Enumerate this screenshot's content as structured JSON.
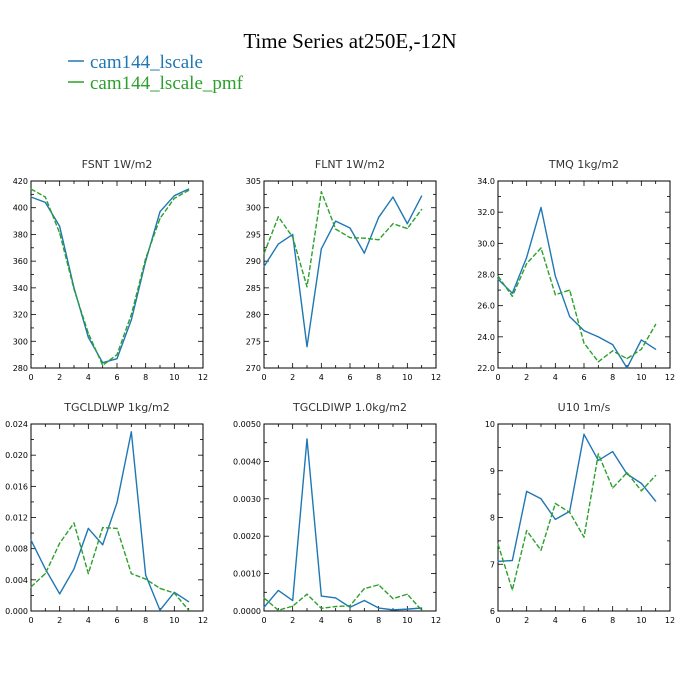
{
  "figure": {
    "title": "Time Series at250E,-12N",
    "legend": [
      {
        "name": "cam144_lscale",
        "color": "#1f77b4"
      },
      {
        "name": "cam144_lscale_pmf",
        "color": "#2ca02c",
        "dash": true
      }
    ]
  },
  "chart_data": [
    {
      "type": "line",
      "title": "FSNT   1W/m2",
      "xlim": [
        0,
        12
      ],
      "ylim": [
        280,
        420
      ],
      "xticks": [
        0,
        2,
        4,
        6,
        8,
        10,
        12
      ],
      "xtick_labels": [
        "0",
        "2",
        "4",
        "6",
        "8",
        "10",
        "12"
      ],
      "yticks": [
        280,
        300,
        320,
        340,
        360,
        380,
        400,
        420
      ],
      "ytick_labels": [
        "280",
        "300",
        "320",
        "340",
        "360",
        "380",
        "400",
        "420"
      ],
      "x": [
        0,
        1,
        2,
        3,
        4,
        5,
        6,
        7,
        8,
        9,
        10,
        11
      ],
      "series": [
        {
          "name": "cam144_lscale",
          "values": [
            408,
            404,
            386,
            340,
            303,
            284,
            287,
            316,
            360,
            397,
            409,
            414
          ]
        },
        {
          "name": "cam144_lscale_pmf",
          "values": [
            414,
            408,
            381,
            339,
            306,
            282,
            290,
            320,
            362,
            392,
            407,
            413
          ]
        }
      ]
    },
    {
      "type": "line",
      "title": "FLNT   1W/m2",
      "xlim": [
        0,
        12
      ],
      "ylim": [
        270,
        305
      ],
      "xticks": [
        0,
        2,
        4,
        6,
        8,
        10,
        12
      ],
      "xtick_labels": [
        "0",
        "2",
        "4",
        "6",
        "8",
        "10",
        "12"
      ],
      "yticks": [
        270,
        275,
        280,
        285,
        290,
        295,
        300,
        305
      ],
      "ytick_labels": [
        "270",
        "275",
        "280",
        "285",
        "290",
        "295",
        "300",
        "305"
      ],
      "x": [
        0,
        1,
        2,
        3,
        4,
        5,
        6,
        7,
        8,
        9,
        10,
        11
      ],
      "series": [
        {
          "name": "cam144_lscale",
          "values": [
            289,
            293.2,
            295,
            274,
            292.3,
            297.5,
            296.2,
            291.5,
            298.2,
            302,
            297,
            302.2
          ]
        },
        {
          "name": "cam144_lscale_pmf",
          "values": [
            291.4,
            298.3,
            294.5,
            285.2,
            303,
            296,
            294.4,
            294.3,
            294,
            297,
            296.1,
            299.7
          ]
        }
      ]
    },
    {
      "type": "line",
      "title": "TMQ   1kg/m2",
      "xlim": [
        0,
        12
      ],
      "ylim": [
        22,
        34
      ],
      "xticks": [
        0,
        2,
        4,
        6,
        8,
        10,
        12
      ],
      "xtick_labels": [
        "0",
        "2",
        "4",
        "6",
        "8",
        "10",
        "12"
      ],
      "yticks": [
        22,
        24,
        26,
        28,
        30,
        32,
        34
      ],
      "ytick_labels": [
        "22.0",
        "24.0",
        "26.0",
        "28.0",
        "30.0",
        "32.0",
        "34.0"
      ],
      "x": [
        0,
        1,
        2,
        3,
        4,
        5,
        6,
        7,
        8,
        9,
        10,
        11
      ],
      "series": [
        {
          "name": "cam144_lscale",
          "values": [
            27.7,
            26.8,
            29.1,
            32.3,
            27.9,
            25.3,
            24.4,
            24,
            23.5,
            22,
            23.8,
            23.2
          ]
        },
        {
          "name": "cam144_lscale_pmf",
          "values": [
            27.9,
            26.6,
            28.7,
            29.7,
            26.7,
            27,
            23.6,
            22.4,
            23.1,
            22.6,
            23.2,
            24.8
          ]
        }
      ]
    },
    {
      "type": "line",
      "title": "TGCLDLWP   1kg/m2",
      "xlim": [
        0,
        12
      ],
      "ylim": [
        0,
        0.024
      ],
      "xticks": [
        0,
        2,
        4,
        6,
        8,
        10,
        12
      ],
      "xtick_labels": [
        "0",
        "2",
        "4",
        "6",
        "8",
        "10",
        "12"
      ],
      "yticks": [
        0,
        0.004,
        0.008,
        0.012,
        0.016,
        0.02,
        0.024
      ],
      "ytick_labels": [
        "0.000",
        "0.004",
        "0.008",
        "0.012",
        "0.016",
        "0.020",
        "0.024"
      ],
      "x": [
        0,
        1,
        2,
        3,
        4,
        5,
        6,
        7,
        8,
        9,
        10,
        11
      ],
      "series": [
        {
          "name": "cam144_lscale",
          "values": [
            0.0091,
            0.0054,
            0.0022,
            0.0054,
            0.0106,
            0.0085,
            0.0139,
            0.023,
            0.0046,
            0.0001,
            0.0024,
            0.0012
          ]
        },
        {
          "name": "cam144_lscale_pmf",
          "values": [
            0.0031,
            0.0048,
            0.0087,
            0.0113,
            0.0048,
            0.0107,
            0.0106,
            0.0048,
            0.0041,
            0.0029,
            0.0023,
            0.0001
          ]
        }
      ]
    },
    {
      "type": "line",
      "title": "TGCLDIWP   1.0kg/m2",
      "xlim": [
        0,
        12
      ],
      "ylim": [
        0,
        0.005
      ],
      "xticks": [
        0,
        2,
        4,
        6,
        8,
        10,
        12
      ],
      "xtick_labels": [
        "0",
        "2",
        "4",
        "6",
        "8",
        "10",
        "12"
      ],
      "yticks": [
        0,
        0.001,
        0.002,
        0.003,
        0.004,
        0.005
      ],
      "ytick_labels": [
        "0.0000",
        "0.0010",
        "0.0020",
        "0.0030",
        "0.0040",
        "0.0050"
      ],
      "x": [
        0,
        1,
        2,
        3,
        4,
        5,
        6,
        7,
        8,
        9,
        10,
        11
      ],
      "series": [
        {
          "name": "cam144_lscale",
          "values": [
            0.0001,
            0.00055,
            0.00028,
            0.0046,
            0.0004,
            0.00035,
            0.0001,
            0.00028,
            8e-05,
            3e-05,
            5e-05,
            8e-05
          ]
        },
        {
          "name": "cam144_lscale_pmf",
          "values": [
            0.00035,
            2e-05,
            0.00013,
            0.00045,
            7e-05,
            0.00012,
            0.00014,
            0.0006,
            0.0007,
            0.00033,
            0.00045,
            2e-05
          ]
        }
      ]
    },
    {
      "type": "line",
      "title": "U10   1m/s",
      "xlim": [
        0,
        12
      ],
      "ylim": [
        6,
        10
      ],
      "xticks": [
        0,
        2,
        4,
        6,
        8,
        10,
        12
      ],
      "xtick_labels": [
        "0",
        "2",
        "4",
        "6",
        "8",
        "10",
        "12"
      ],
      "yticks": [
        6,
        7,
        8,
        9,
        10
      ],
      "ytick_labels": [
        "6",
        "7",
        "8",
        "9",
        "10"
      ],
      "x": [
        0,
        1,
        2,
        3,
        4,
        5,
        6,
        7,
        8,
        9,
        10,
        11
      ],
      "series": [
        {
          "name": "cam144_lscale",
          "values": [
            7.06,
            7.08,
            8.56,
            8.4,
            7.96,
            8.13,
            9.78,
            9.22,
            9.41,
            8.93,
            8.73,
            8.35
          ]
        },
        {
          "name": "cam144_lscale_pmf",
          "values": [
            7.43,
            6.45,
            7.72,
            7.3,
            8.3,
            8.11,
            7.58,
            9.36,
            8.63,
            8.96,
            8.57,
            8.9
          ]
        }
      ]
    }
  ]
}
